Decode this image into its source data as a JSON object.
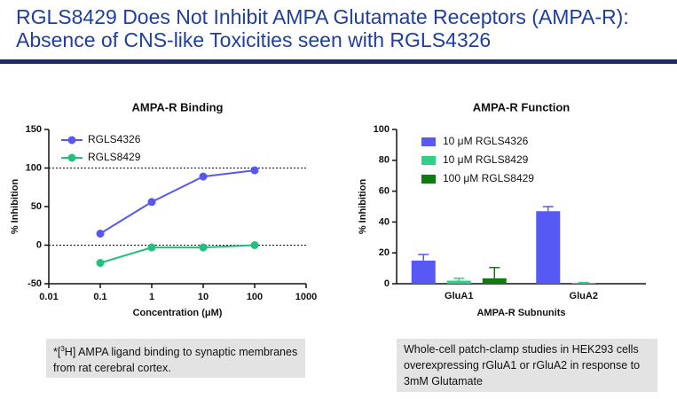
{
  "header": {
    "title": [
      "RGLS8429 Does Not Inhibit AMPA Glutamate Receptors (AMPA-R):",
      "Absence of CNS-like Toxicities seen with RGLS4326"
    ]
  },
  "chart_data": [
    {
      "type": "line",
      "title": "AMPA-R Binding",
      "x_label": "Concentration (μM)",
      "y_label": "% Inhibition",
      "x": [
        0.1,
        1,
        10,
        100
      ],
      "xlog": true,
      "xlim": [
        0.01,
        1000
      ],
      "xticks": [
        0.01,
        0.1,
        1,
        10,
        100,
        1000
      ],
      "ylim": [
        -50,
        150
      ],
      "yticks": [
        -50,
        0,
        50,
        100,
        150
      ],
      "reference_lines": [
        0,
        100
      ],
      "legend": "upper left",
      "series": [
        {
          "name": "RGLS4326",
          "color": "#5858ee",
          "values": [
            15,
            56,
            89,
            97
          ]
        },
        {
          "name": "RGLS8429",
          "color": "#22bf7e",
          "values": [
            -23,
            -3,
            -3,
            0
          ]
        }
      ]
    },
    {
      "type": "bar",
      "title": "AMPA-R Function",
      "x_label": "AMPA-R Subnunits",
      "y_label": "% Inhibition",
      "categories": [
        "GluA1",
        "GluA2"
      ],
      "ylim": [
        0,
        100
      ],
      "yticks": [
        0,
        20,
        40,
        60,
        80,
        100
      ],
      "legend": "upper left",
      "series": [
        {
          "name": "10 μM RGLS4326",
          "color": "#5858f5",
          "values": [
            15,
            47
          ],
          "errors": [
            4,
            3
          ]
        },
        {
          "name": "10 μM RGLS8429",
          "color": "#2fd08a",
          "values": [
            2,
            0.5
          ],
          "errors": [
            1.5,
            0.3
          ]
        },
        {
          "name": "100 μM RGLS8429",
          "color": "#127a12",
          "values": [
            3.5,
            null
          ],
          "errors": [
            7,
            null
          ]
        }
      ]
    }
  ],
  "notes": [
    [
      "*[",
      "3",
      "H] AMPA ligand binding to synaptic membranes from rat cerebral cortex."
    ],
    [
      "Whole-cell patch-clamp studies in HEK293 cells overexpressing rGluA1 or rGluA2 in response to 3mM Glutamate"
    ]
  ]
}
